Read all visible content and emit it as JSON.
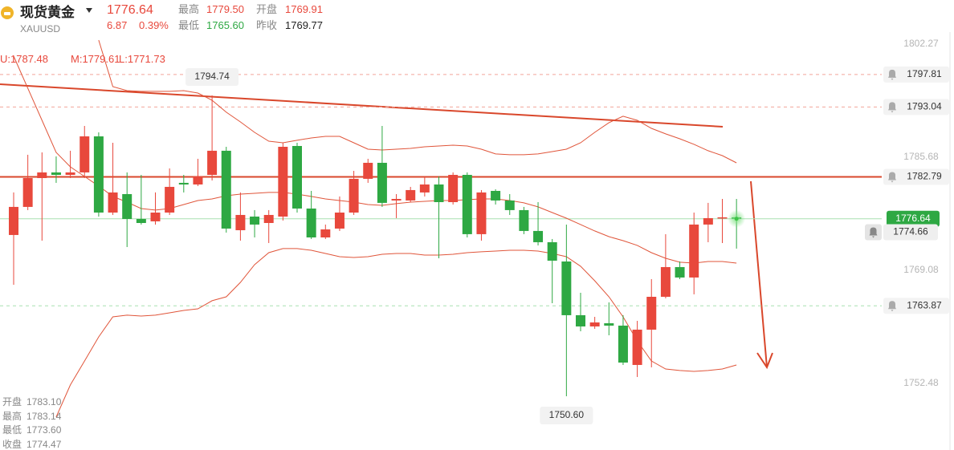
{
  "header": {
    "name": "现货黄金",
    "symbol": "XAUUSD",
    "price": "1776.64",
    "change": "6.87",
    "change_pct": "0.39%",
    "high_label": "最高",
    "high": "1779.50",
    "open_label": "开盘",
    "open": "1769.91",
    "low_label": "最低",
    "low": "1765.60",
    "prev_close_label": "昨收",
    "prev_close": "1769.77"
  },
  "indicator": {
    "upper": "U:1787.48",
    "middle": "M:1779.61",
    "lower": "L:1771.73"
  },
  "ohlc_panel": [
    [
      "开盘",
      "1783.10"
    ],
    [
      "最高",
      "1783.14"
    ],
    [
      "最低",
      "1773.60"
    ],
    [
      "收盘",
      "1774.47"
    ]
  ],
  "chart_data": {
    "type": "candlestick",
    "ylim": [
      1742.71,
      1808.74
    ],
    "yticks": [
      1802.27,
      1785.68,
      1769.08,
      1752.48
    ],
    "grid": false,
    "up_color": "#e8483c",
    "down_color": "#2ea843",
    "open": [
      1774.26,
      1778.38,
      1782.61,
      1783.44,
      1783.08,
      1783.44,
      1788.73,
      1777.55,
      1780.26,
      1776.61,
      1776.26,
      1777.55,
      1781.91,
      1781.67,
      1783.08,
      1786.62,
      1774.96,
      1776.96,
      1776.02,
      1776.96,
      1787.32,
      1778.14,
      1773.9,
      1775.2,
      1777.55,
      1782.5,
      1784.85,
      1779.32,
      1779.32,
      1780.5,
      1781.67,
      1779.08,
      1783.08,
      1774.38,
      1780.73,
      1779.32,
      1777.91,
      1774.85,
      1773.2,
      1770.37,
      1762.49,
      1760.84,
      1761.31,
      1760.96,
      1755.19,
      1760.37,
      1765.19,
      1769.55,
      1768.02,
      1775.79,
      1776.73,
      1776.85
    ],
    "high": [
      1780.5,
      1786.03,
      1786.38,
      1785.79,
      1786.62,
      1790.26,
      1789.32,
      1787.79,
      1783.44,
      1783.08,
      1780.5,
      1784.03,
      1783.08,
      1785.44,
      1794.74,
      1787.2,
      1780.5,
      1777.91,
      1777.91,
      1787.79,
      1787.79,
      1780.73,
      1775.79,
      1779.91,
      1783.67,
      1785.44,
      1790.26,
      1780.26,
      1781.32,
      1782.85,
      1782.85,
      1783.44,
      1783.44,
      1780.85,
      1780.97,
      1780.26,
      1778.38,
      1779.08,
      1773.67,
      1775.79,
      1765.78,
      1762.25,
      1764.37,
      1762.49,
      1761.66,
      1767.78,
      1774.38,
      1770.37,
      1777.55,
      1778.97,
      1779.55,
      1779.55
    ],
    "low": [
      1766.96,
      1777.91,
      1773.43,
      1781.91,
      1782.61,
      1782.61,
      1776.96,
      1777.2,
      1772.49,
      1775.79,
      1775.79,
      1777.2,
      1780.5,
      1781.44,
      1782.26,
      1774.61,
      1773.43,
      1773.9,
      1773.08,
      1776.38,
      1777.55,
      1773.67,
      1773.67,
      1774.85,
      1777.2,
      1781.91,
      1778.38,
      1776.73,
      1779.08,
      1779.91,
      1770.84,
      1778.73,
      1773.9,
      1773.43,
      1778.73,
      1777.2,
      1774.38,
      1772.73,
      1764.25,
      1750.6,
      1760.13,
      1760.49,
      1759.54,
      1755.19,
      1753.42,
      1754.84,
      1764.96,
      1767.78,
      1765.55,
      1773.2,
      1773.08,
      1772.26
    ],
    "close": [
      1778.38,
      1782.61,
      1783.44,
      1783.08,
      1783.44,
      1788.73,
      1777.55,
      1780.5,
      1776.61,
      1776.02,
      1777.55,
      1781.32,
      1781.67,
      1782.85,
      1786.62,
      1775.2,
      1777.2,
      1775.79,
      1777.2,
      1787.2,
      1778.14,
      1773.9,
      1775.08,
      1777.55,
      1782.5,
      1784.85,
      1778.97,
      1779.55,
      1780.85,
      1781.67,
      1779.08,
      1783.08,
      1774.38,
      1780.5,
      1779.32,
      1777.91,
      1774.85,
      1773.2,
      1770.49,
      1762.49,
      1760.84,
      1761.43,
      1760.96,
      1755.54,
      1760.37,
      1765.19,
      1769.55,
      1768.02,
      1775.79,
      1776.73,
      1776.85,
      1776.64
    ],
    "bands": [
      {
        "color": "#e0553a",
        "values": [
          null,
          null,
          null,
          null,
          null,
          null,
          1802.86,
          1796.03,
          1795.44,
          1795.33,
          1795.33,
          1795.33,
          1795.44,
          1795.09,
          1794.03,
          1792.27,
          1790.85,
          1789.32,
          1788.03,
          1787.79,
          1788.15,
          1788.5,
          1788.73,
          1788.73,
          1787.79,
          1786.85,
          1786.73,
          1786.85,
          1786.97,
          1787.2,
          1787.32,
          1787.44,
          1787.32,
          1786.85,
          1786.15,
          1786.03,
          1786.03,
          1786.15,
          1786.5,
          1786.85,
          1787.79,
          1789.32,
          1790.74,
          1791.68,
          1791.09,
          1789.91,
          1789.09,
          1788.38,
          1787.56,
          1786.62,
          1785.91,
          1784.85
        ]
      },
      {
        "color": "#e0553a",
        "values": [
          1800.5,
          1795.8,
          1791.09,
          1786.38,
          1784.26,
          1782.85,
          1781.44,
          1779.91,
          1779.08,
          1778.14,
          1777.91,
          1778.14,
          1778.73,
          1779.32,
          1779.55,
          1780.02,
          1780.26,
          1780.38,
          1780.5,
          1780.5,
          1780.26,
          1779.91,
          1779.55,
          1779.32,
          1779.08,
          1778.73,
          1778.61,
          1778.85,
          1779.08,
          1779.2,
          1779.32,
          1779.32,
          1779.44,
          1779.55,
          1779.55,
          1779.32,
          1778.97,
          1778.38,
          1777.55,
          1776.73,
          1775.79,
          1774.85,
          1774.02,
          1773.43,
          1772.73,
          1771.67,
          1770.84,
          1770.26,
          1770.14,
          1770.37,
          1770.37,
          1770.14
        ]
      },
      {
        "color": "#e0553a",
        "values": [
          null,
          null,
          null,
          1747.54,
          1752.25,
          1755.78,
          1759.31,
          1762.25,
          1762.49,
          1762.37,
          1762.49,
          1762.84,
          1763.19,
          1763.43,
          1764.61,
          1765.19,
          1767.31,
          1769.9,
          1771.67,
          1772.26,
          1772.26,
          1772.02,
          1771.55,
          1771.08,
          1770.96,
          1771.08,
          1771.43,
          1771.55,
          1771.55,
          1771.31,
          1771.31,
          1771.43,
          1771.67,
          1771.79,
          1771.9,
          1772.02,
          1772.02,
          1771.9,
          1771.55,
          1771.08,
          1769.67,
          1767.55,
          1765.19,
          1762.25,
          1758.72,
          1755.78,
          1754.6,
          1754.37,
          1754.25,
          1754.37,
          1754.6,
          1755.19
        ]
      }
    ],
    "price_lines": [
      {
        "value": 1797.81,
        "color": "#f2a59b",
        "dashed": true,
        "bell": true
      },
      {
        "value": 1793.04,
        "color": "#f2a59b",
        "dashed": true,
        "bell": true
      },
      {
        "value": 1782.79,
        "color": "#d9472b",
        "dashed": false,
        "bold": true,
        "bell": true
      },
      {
        "value": 1776.64,
        "color": "#a8e0b0",
        "dashed": false,
        "current": true
      },
      {
        "value": 1774.66,
        "bell": true
      },
      {
        "value": 1763.87,
        "color": "#a8e0b0",
        "dashed": true,
        "bell": true
      }
    ],
    "annotations": [
      1794.74,
      {
        "value": 1750.6,
        "label": "1750.60"
      }
    ]
  }
}
